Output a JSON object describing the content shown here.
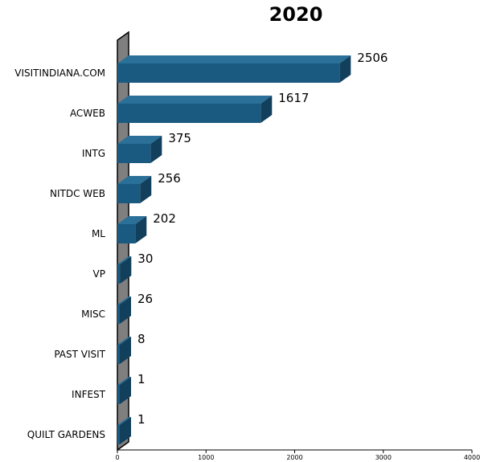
{
  "chart_data": {
    "type": "bar",
    "orientation": "horizontal",
    "style": "3d",
    "title": "2020",
    "categories": [
      "VISITINDIANA.COM",
      "ACWEB",
      "INTG",
      "NITDC WEB",
      "ML",
      "VP",
      "MISC",
      "PAST VISIT",
      "INFEST",
      "QUILT GARDENS"
    ],
    "values": [
      2506,
      1617,
      375,
      256,
      202,
      30,
      26,
      8,
      1,
      1
    ],
    "value_labels": [
      "2506",
      "1617",
      "375",
      "256",
      "202",
      "30",
      "26",
      "8",
      "1",
      "1"
    ],
    "xticks": [
      "0",
      "1000",
      "2000",
      "3000",
      "4000"
    ],
    "xlim": [
      0,
      4000
    ],
    "grid": false,
    "legend": "none",
    "colors": {
      "bar_front": "#1b5a80",
      "bar_top": "#2a7098",
      "bar_side": "#123f5c",
      "wall_front": "#7f7f7f",
      "wall_side": "#5f5f5f",
      "axis": "#000000"
    }
  }
}
